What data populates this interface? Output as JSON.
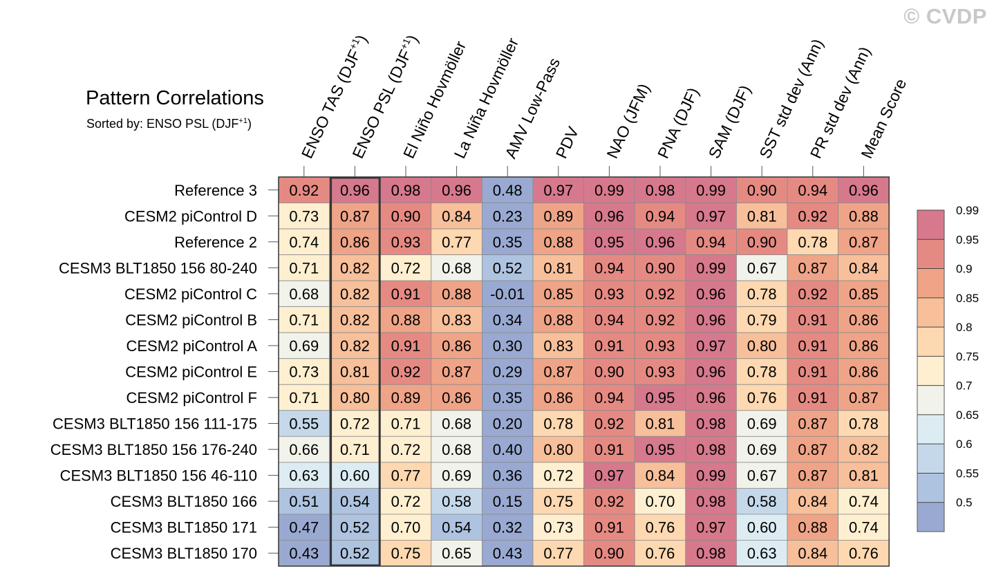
{
  "watermark": "© CVDP",
  "chart_data": {
    "type": "heatmap",
    "title": "Pattern Correlations",
    "subtitle_prefix": "Sorted by: ENSO PSL (DJF",
    "subtitle_sup": "+1",
    "subtitle_suffix": ")",
    "columns": [
      {
        "label": "ENSO TAS (DJF",
        "sup": "+1",
        "suffix": ")"
      },
      {
        "label": "ENSO PSL (DJF",
        "sup": "+1",
        "suffix": ")"
      },
      {
        "label": "El Niño Hovmöller"
      },
      {
        "label": "La Niña Hovmöller"
      },
      {
        "label": "AMV Low-Pass"
      },
      {
        "label": "PDV"
      },
      {
        "label": "NAO (JFM)"
      },
      {
        "label": "PNA (DJF)"
      },
      {
        "label": "SAM (DJF)"
      },
      {
        "label": "SST std dev (Ann)"
      },
      {
        "label": "PR std dev (Ann)"
      },
      {
        "label": "Mean Score"
      }
    ],
    "sorted_column_index": 1,
    "rows": [
      {
        "name": "Reference 3",
        "values": [
          "0.92",
          "0.96",
          "0.98",
          "0.96",
          "0.48",
          "0.97",
          "0.99",
          "0.98",
          "0.99",
          "0.90",
          "0.94",
          "0.96"
        ]
      },
      {
        "name": "CESM2 piControl D",
        "values": [
          "0.73",
          "0.87",
          "0.90",
          "0.84",
          "0.23",
          "0.89",
          "0.96",
          "0.94",
          "0.97",
          "0.81",
          "0.92",
          "0.88"
        ]
      },
      {
        "name": "Reference 2",
        "values": [
          "0.74",
          "0.86",
          "0.93",
          "0.77",
          "0.35",
          "0.88",
          "0.95",
          "0.96",
          "0.94",
          "0.90",
          "0.78",
          "0.87"
        ]
      },
      {
        "name": "CESM3 BLT1850 156 80-240",
        "values": [
          "0.71",
          "0.82",
          "0.72",
          "0.68",
          "0.52",
          "0.81",
          "0.94",
          "0.90",
          "0.99",
          "0.67",
          "0.87",
          "0.84"
        ]
      },
      {
        "name": "CESM2 piControl C",
        "values": [
          "0.68",
          "0.82",
          "0.91",
          "0.88",
          "-0.01",
          "0.85",
          "0.93",
          "0.92",
          "0.96",
          "0.78",
          "0.92",
          "0.85"
        ]
      },
      {
        "name": "CESM2 piControl B",
        "values": [
          "0.71",
          "0.82",
          "0.88",
          "0.83",
          "0.34",
          "0.88",
          "0.94",
          "0.92",
          "0.96",
          "0.79",
          "0.91",
          "0.86"
        ]
      },
      {
        "name": "CESM2 piControl A",
        "values": [
          "0.69",
          "0.82",
          "0.91",
          "0.86",
          "0.30",
          "0.83",
          "0.91",
          "0.93",
          "0.97",
          "0.80",
          "0.91",
          "0.86"
        ]
      },
      {
        "name": "CESM2 piControl E",
        "values": [
          "0.73",
          "0.81",
          "0.92",
          "0.87",
          "0.29",
          "0.87",
          "0.90",
          "0.93",
          "0.96",
          "0.78",
          "0.91",
          "0.86"
        ]
      },
      {
        "name": "CESM2 piControl F",
        "values": [
          "0.71",
          "0.80",
          "0.89",
          "0.86",
          "0.35",
          "0.86",
          "0.94",
          "0.95",
          "0.96",
          "0.76",
          "0.91",
          "0.87"
        ]
      },
      {
        "name": "CESM3 BLT1850 156 111-175",
        "values": [
          "0.55",
          "0.72",
          "0.71",
          "0.68",
          "0.20",
          "0.78",
          "0.92",
          "0.81",
          "0.98",
          "0.69",
          "0.87",
          "0.78"
        ]
      },
      {
        "name": "CESM3 BLT1850 156 176-240",
        "values": [
          "0.66",
          "0.71",
          "0.72",
          "0.68",
          "0.40",
          "0.80",
          "0.91",
          "0.95",
          "0.98",
          "0.69",
          "0.87",
          "0.82"
        ]
      },
      {
        "name": "CESM3 BLT1850 156 46-110",
        "values": [
          "0.63",
          "0.60",
          "0.77",
          "0.69",
          "0.36",
          "0.72",
          "0.97",
          "0.84",
          "0.99",
          "0.67",
          "0.87",
          "0.81"
        ]
      },
      {
        "name": "CESM3 BLT1850 166",
        "values": [
          "0.51",
          "0.54",
          "0.72",
          "0.58",
          "0.15",
          "0.75",
          "0.92",
          "0.70",
          "0.98",
          "0.58",
          "0.84",
          "0.74"
        ]
      },
      {
        "name": "CESM3 BLT1850 171",
        "values": [
          "0.47",
          "0.52",
          "0.70",
          "0.54",
          "0.32",
          "0.73",
          "0.91",
          "0.76",
          "0.97",
          "0.60",
          "0.88",
          "0.74"
        ]
      },
      {
        "name": "CESM3 BLT1850 170",
        "values": [
          "0.43",
          "0.52",
          "0.75",
          "0.65",
          "0.43",
          "0.77",
          "0.90",
          "0.76",
          "0.98",
          "0.63",
          "0.84",
          "0.76"
        ]
      }
    ],
    "colorbar": {
      "levels": [
        "0.5",
        "0.55",
        "0.6",
        "0.65",
        "0.7",
        "0.75",
        "0.8",
        "0.85",
        "0.9",
        "0.95",
        "0.99"
      ],
      "colors": [
        "#99a9d1",
        "#aec3e0",
        "#c4d8ea",
        "#dcecf2",
        "#f1f2e9",
        "#fdefd0",
        "#fdd8b0",
        "#f7bf9a",
        "#efa487",
        "#e58a83",
        "#d6798d"
      ]
    }
  }
}
